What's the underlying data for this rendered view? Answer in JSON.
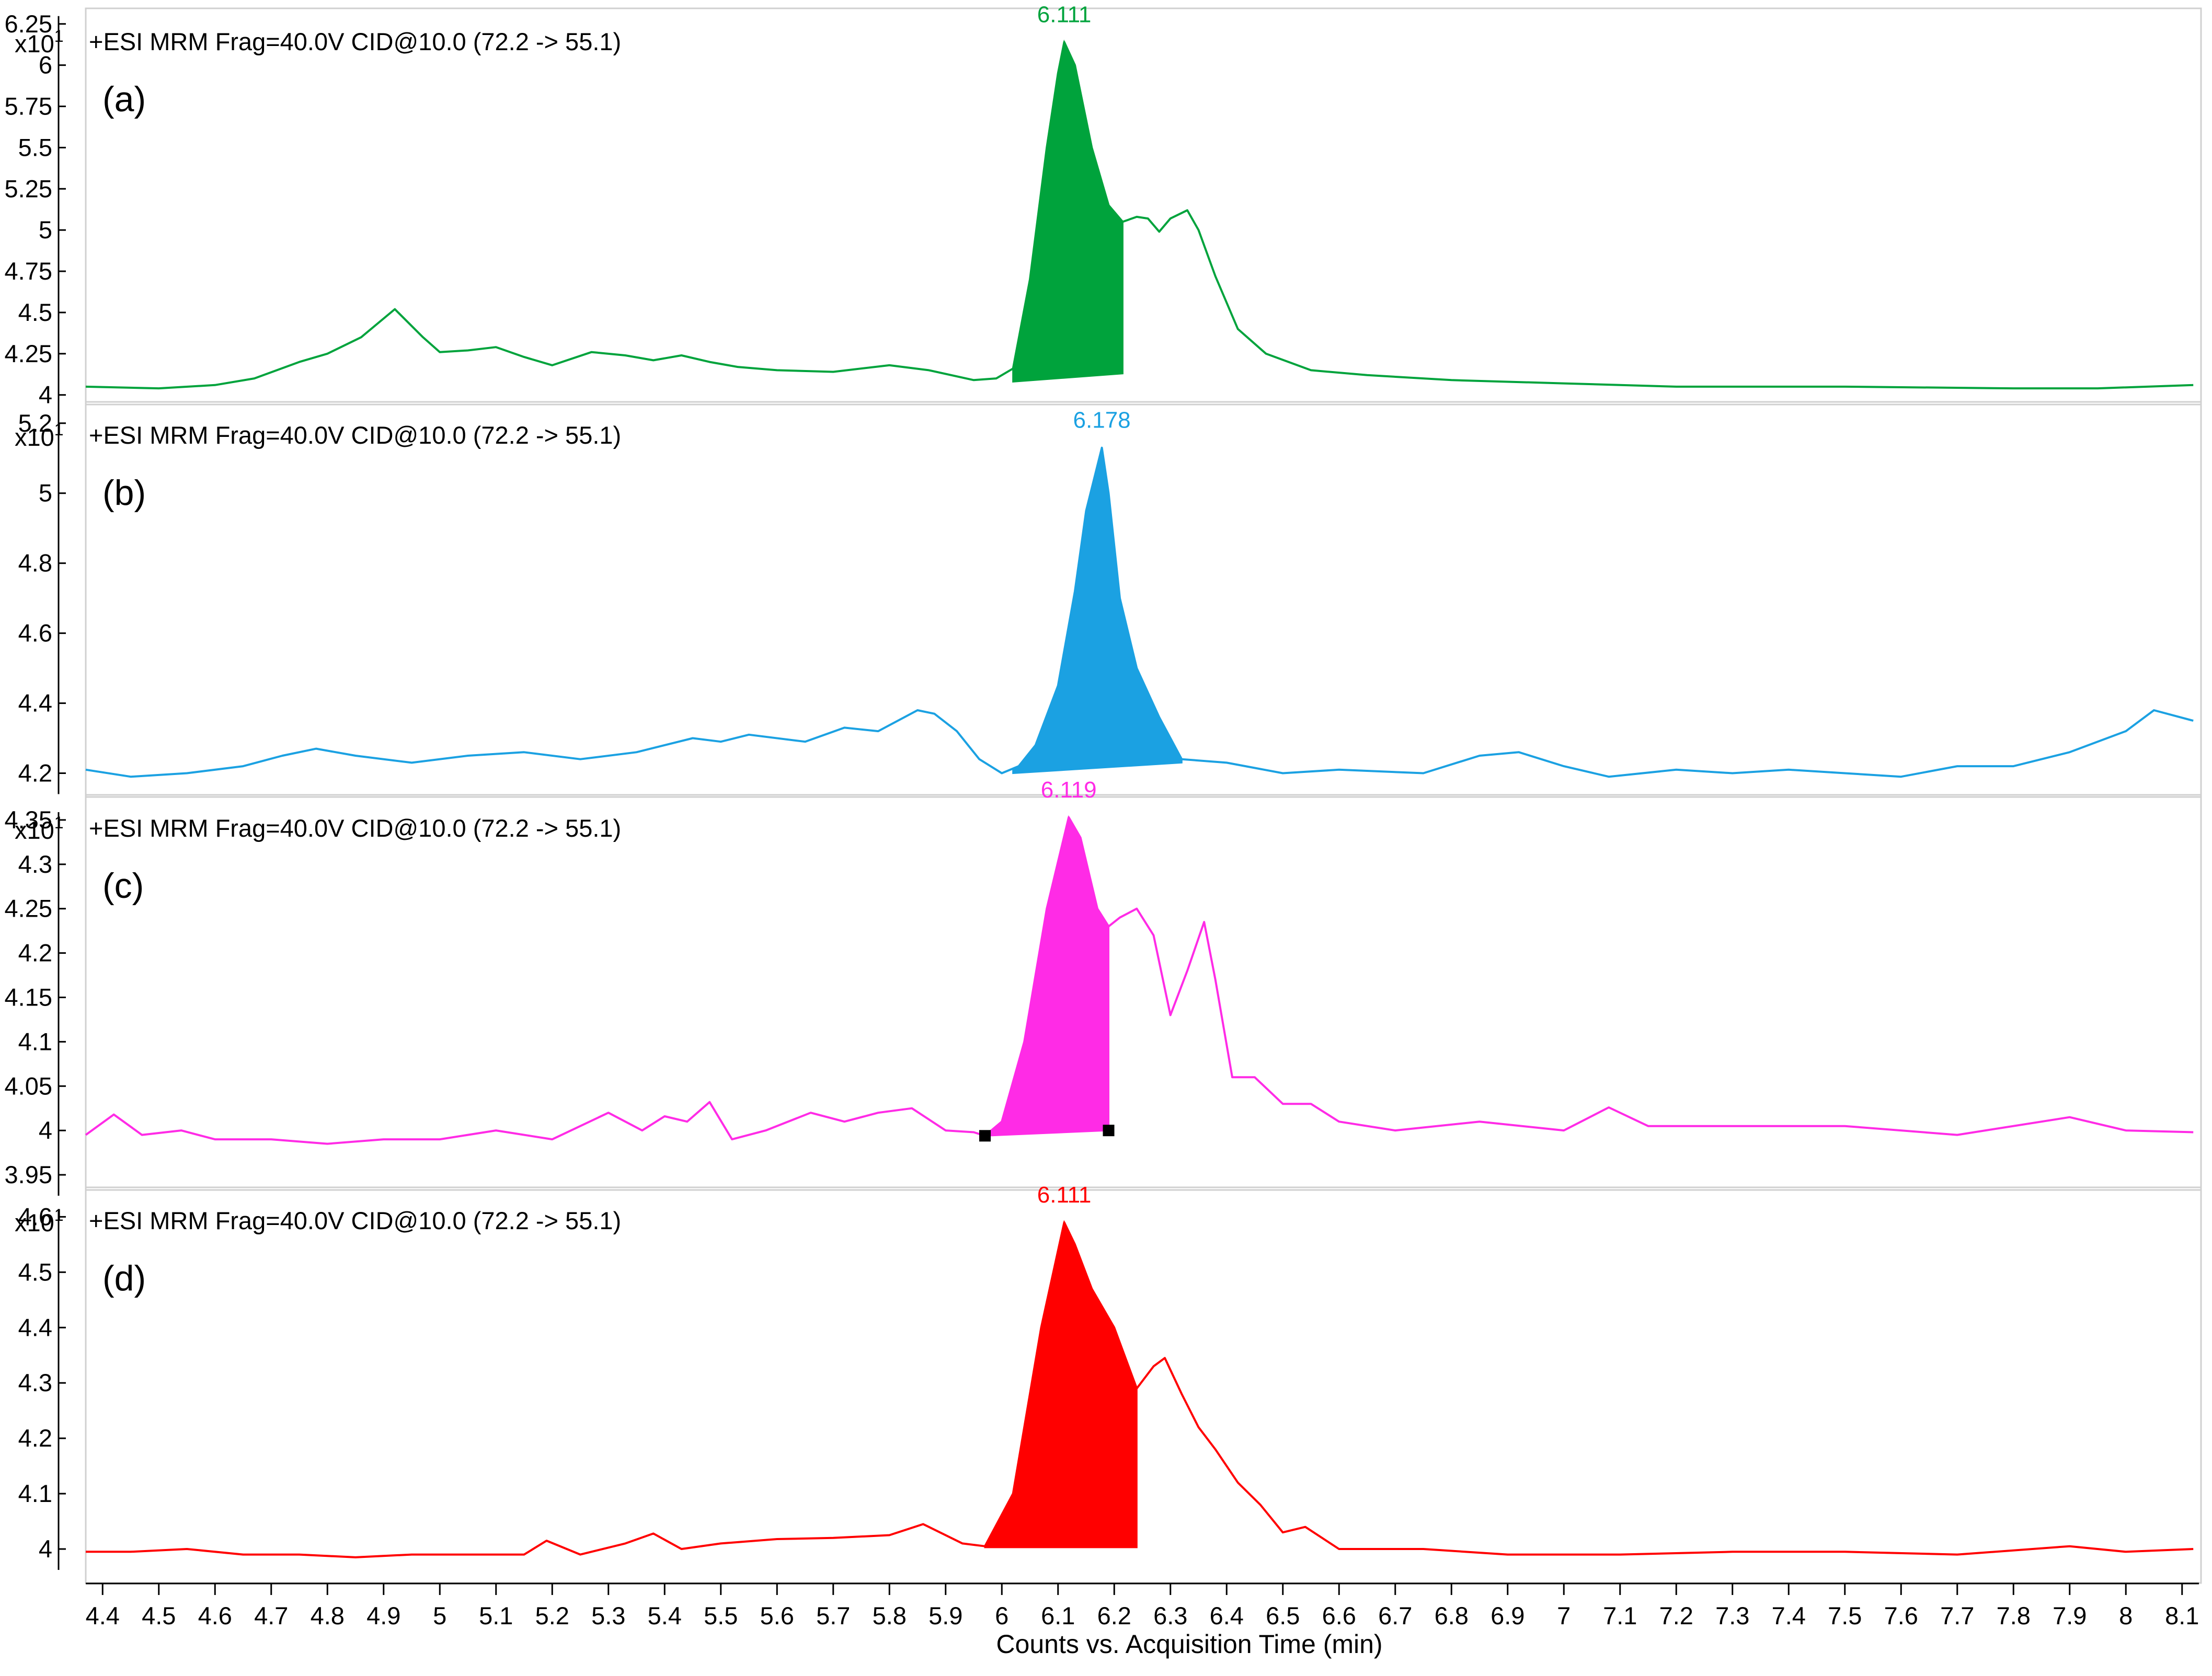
{
  "chart_data": [
    {
      "type": "line",
      "panel_label": "(a)",
      "scan_title": "+ESI MRM Frag=40.0V CID@10.0 (72.2 -> 55.1)",
      "y_multiplier": {
        "base": "x10",
        "exp": "1"
      },
      "color": "#00a33c",
      "peak_label": "6.111",
      "peak_x": 6.111,
      "ylim": [
        3.98,
        6.3
      ],
      "yticks": [
        4,
        4.25,
        4.5,
        4.75,
        5,
        5.25,
        5.5,
        5.75,
        6,
        6.25
      ],
      "ytick_labels": [
        "4",
        "4.25",
        "4.5",
        "4.75",
        "5",
        "5.25",
        "5.5",
        "5.75",
        "6",
        "6.25"
      ],
      "fill_range": [
        6.02,
        6.215
      ],
      "fill_baseline": [
        4.08,
        4.13
      ],
      "x": [
        4.37,
        4.5,
        4.6,
        4.67,
        4.75,
        4.8,
        4.86,
        4.92,
        4.97,
        5.0,
        5.05,
        5.1,
        5.15,
        5.2,
        5.27,
        5.33,
        5.38,
        5.43,
        5.48,
        5.53,
        5.6,
        5.7,
        5.8,
        5.87,
        5.95,
        5.99,
        6.02,
        6.05,
        6.08,
        6.1,
        6.111,
        6.13,
        6.16,
        6.19,
        6.215,
        6.24,
        6.26,
        6.28,
        6.3,
        6.33,
        6.35,
        6.38,
        6.42,
        6.47,
        6.55,
        6.65,
        6.8,
        7.0,
        7.2,
        7.5,
        7.8,
        7.95,
        8.12
      ],
      "y": [
        4.05,
        4.04,
        4.06,
        4.1,
        4.2,
        4.25,
        4.35,
        4.52,
        4.35,
        4.26,
        4.27,
        4.29,
        4.23,
        4.18,
        4.26,
        4.24,
        4.21,
        4.24,
        4.2,
        4.17,
        4.15,
        4.14,
        4.18,
        4.15,
        4.09,
        4.1,
        4.16,
        4.7,
        5.5,
        5.95,
        6.14,
        6.0,
        5.5,
        5.15,
        5.05,
        5.08,
        5.07,
        4.99,
        5.07,
        5.12,
        5.0,
        4.72,
        4.4,
        4.25,
        4.15,
        4.12,
        4.09,
        4.07,
        4.05,
        4.05,
        4.04,
        4.04,
        4.06
      ]
    },
    {
      "type": "line",
      "panel_label": "(b)",
      "scan_title": "+ESI MRM Frag=40.0V CID@10.0 (72.2 -> 55.1)",
      "y_multiplier": {
        "base": "x10",
        "exp": "1"
      },
      "color": "#1ba1e2",
      "peak_label": "6.178",
      "peak_x": 6.178,
      "ylim": [
        4.15,
        5.24
      ],
      "yticks": [
        4.2,
        4.4,
        4.6,
        4.8,
        5,
        5.2
      ],
      "ytick_labels": [
        "4.2",
        "4.4",
        "4.6",
        "4.8",
        "5",
        "5.2"
      ],
      "fill_range": [
        6.02,
        6.32
      ],
      "fill_baseline": [
        4.2,
        4.23
      ],
      "x": [
        4.37,
        4.45,
        4.55,
        4.65,
        4.72,
        4.78,
        4.85,
        4.95,
        5.05,
        5.15,
        5.25,
        5.35,
        5.45,
        5.5,
        5.55,
        5.65,
        5.72,
        5.78,
        5.85,
        5.88,
        5.92,
        5.96,
        6.0,
        6.03,
        6.06,
        6.1,
        6.13,
        6.15,
        6.178,
        6.19,
        6.21,
        6.24,
        6.28,
        6.32,
        6.4,
        6.5,
        6.6,
        6.75,
        6.85,
        6.92,
        7.0,
        7.08,
        7.2,
        7.3,
        7.4,
        7.5,
        7.6,
        7.7,
        7.8,
        7.9,
        8.0,
        8.05,
        8.12
      ],
      "y": [
        4.21,
        4.19,
        4.2,
        4.22,
        4.25,
        4.27,
        4.25,
        4.23,
        4.25,
        4.26,
        4.24,
        4.26,
        4.3,
        4.29,
        4.31,
        4.29,
        4.33,
        4.32,
        4.38,
        4.37,
        4.32,
        4.24,
        4.2,
        4.22,
        4.28,
        4.45,
        4.72,
        4.95,
        5.13,
        5.0,
        4.7,
        4.5,
        4.36,
        4.24,
        4.23,
        4.2,
        4.21,
        4.2,
        4.25,
        4.26,
        4.22,
        4.19,
        4.21,
        4.2,
        4.21,
        4.2,
        4.19,
        4.22,
        4.22,
        4.26,
        4.32,
        4.38,
        4.35
      ]
    },
    {
      "type": "line",
      "panel_label": "(c)",
      "scan_title": "+ESI MRM Frag=40.0V CID@10.0 (72.2 -> 55.1)",
      "y_multiplier": {
        "base": "x10",
        "exp": "1"
      },
      "color": "#ff2be6",
      "peak_label": "6.119",
      "peak_x": 6.119,
      "ylim": [
        3.94,
        4.37
      ],
      "yticks": [
        3.95,
        4,
        4.05,
        4.1,
        4.15,
        4.2,
        4.25,
        4.3,
        4.35
      ],
      "ytick_labels": [
        "3.95",
        "4",
        "4.05",
        "4.1",
        "4.15",
        "4.2",
        "4.25",
        "4.3",
        "4.35"
      ],
      "fill_range": [
        5.97,
        6.19
      ],
      "fill_baseline": [
        3.994,
        4.0
      ],
      "markers": [
        [
          5.97,
          3.994
        ],
        [
          6.19,
          4.0
        ]
      ],
      "x": [
        4.37,
        4.42,
        4.47,
        4.54,
        4.6,
        4.7,
        4.8,
        4.9,
        5.0,
        5.1,
        5.2,
        5.3,
        5.36,
        5.4,
        5.44,
        5.48,
        5.52,
        5.58,
        5.66,
        5.72,
        5.78,
        5.84,
        5.9,
        5.95,
        5.97,
        6.0,
        6.04,
        6.08,
        6.119,
        6.14,
        6.17,
        6.19,
        6.21,
        6.24,
        6.27,
        6.3,
        6.33,
        6.36,
        6.38,
        6.41,
        6.45,
        6.5,
        6.55,
        6.6,
        6.7,
        6.85,
        7.0,
        7.08,
        7.15,
        7.3,
        7.5,
        7.7,
        7.9,
        8.0,
        8.12
      ],
      "y": [
        3.995,
        4.018,
        3.995,
        4.0,
        3.99,
        3.99,
        3.985,
        3.99,
        3.99,
        4.0,
        3.99,
        4.02,
        4.0,
        4.016,
        4.01,
        4.032,
        3.99,
        4.0,
        4.02,
        4.01,
        4.02,
        4.025,
        4.0,
        3.998,
        3.994,
        4.01,
        4.1,
        4.25,
        4.353,
        4.33,
        4.25,
        4.23,
        4.24,
        4.25,
        4.22,
        4.13,
        4.18,
        4.235,
        4.17,
        4.06,
        4.06,
        4.03,
        4.03,
        4.01,
        4.0,
        4.01,
        4.0,
        4.026,
        4.005,
        4.005,
        4.005,
        3.995,
        4.015,
        4.0,
        3.998
      ]
    },
    {
      "type": "line",
      "panel_label": "(d)",
      "scan_title": "+ESI MRM Frag=40.0V CID@10.0 (72.2 -> 55.1)",
      "y_multiplier": {
        "base": "x10",
        "exp": "1"
      },
      "color": "#ff0000",
      "peak_label": "6.111",
      "peak_x": 6.111,
      "ylim": [
        3.95,
        4.64
      ],
      "yticks": [
        4,
        4.1,
        4.2,
        4.3,
        4.4,
        4.5,
        4.6
      ],
      "ytick_labels": [
        "4",
        "4.1",
        "4.2",
        "4.3",
        "4.4",
        "4.5",
        "4.6"
      ],
      "fill_range": [
        5.97,
        6.24
      ],
      "fill_baseline": [
        4.003,
        4.003
      ],
      "x": [
        4.37,
        4.45,
        4.55,
        4.65,
        4.75,
        4.85,
        4.95,
        5.05,
        5.15,
        5.19,
        5.25,
        5.33,
        5.38,
        5.43,
        5.5,
        5.6,
        5.7,
        5.8,
        5.86,
        5.93,
        5.97,
        6.02,
        6.07,
        6.111,
        6.13,
        6.16,
        6.2,
        6.24,
        6.27,
        6.29,
        6.32,
        6.35,
        6.38,
        6.42,
        6.46,
        6.5,
        6.54,
        6.6,
        6.75,
        6.9,
        7.1,
        7.3,
        7.5,
        7.7,
        7.9,
        8.0,
        8.12
      ],
      "y": [
        3.995,
        3.995,
        4.0,
        3.99,
        3.99,
        3.985,
        3.99,
        3.99,
        3.99,
        4.015,
        3.99,
        4.01,
        4.028,
        4.0,
        4.01,
        4.018,
        4.02,
        4.025,
        4.045,
        4.01,
        4.005,
        4.1,
        4.4,
        4.59,
        4.55,
        4.47,
        4.4,
        4.29,
        4.33,
        4.345,
        4.28,
        4.22,
        4.18,
        4.12,
        4.08,
        4.03,
        4.04,
        4.0,
        4.0,
        3.99,
        3.99,
        3.995,
        3.995,
        3.99,
        4.005,
        3.995,
        4.0
      ]
    }
  ],
  "xaxis": {
    "label": "Counts vs. Acquisition Time (min)",
    "xlim": [
      4.37,
      8.13
    ],
    "ticks": [
      4.4,
      4.5,
      4.6,
      4.7,
      4.8,
      4.9,
      5,
      5.1,
      5.2,
      5.3,
      5.4,
      5.5,
      5.6,
      5.7,
      5.8,
      5.9,
      6,
      6.1,
      6.2,
      6.3,
      6.4,
      6.5,
      6.6,
      6.7,
      6.8,
      6.9,
      7,
      7.1,
      7.2,
      7.3,
      7.4,
      7.5,
      7.6,
      7.7,
      7.8,
      7.9,
      8,
      8.1
    ],
    "tick_labels": [
      "4.4",
      "4.5",
      "4.6",
      "4.7",
      "4.8",
      "4.9",
      "5",
      "5.1",
      "5.2",
      "5.3",
      "5.4",
      "5.5",
      "5.6",
      "5.7",
      "5.8",
      "5.9",
      "6",
      "6.1",
      "6.2",
      "6.3",
      "6.4",
      "6.5",
      "6.6",
      "6.7",
      "6.8",
      "6.9",
      "7",
      "7.1",
      "7.2",
      "7.3",
      "7.4",
      "7.5",
      "7.6",
      "7.7",
      "7.8",
      "7.9",
      "8",
      "8.1"
    ]
  }
}
